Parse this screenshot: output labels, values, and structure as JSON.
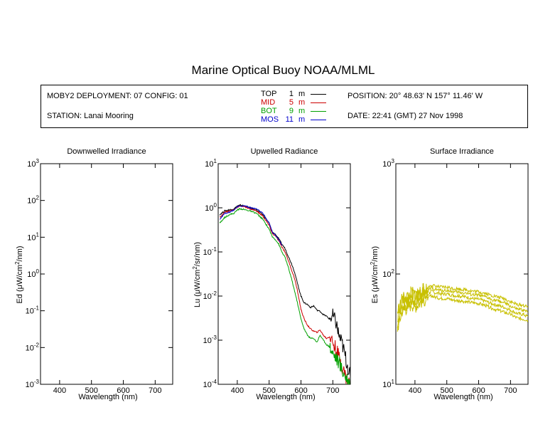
{
  "title": "Marine Optical Buoy NOAA/MLML",
  "info": {
    "deployment": "MOBY2 DEPLOYMENT: 07 CONFIG: 01",
    "station": "STATION: Lanai Mooring",
    "position": "POSITION: 20° 48.63' N   157° 11.46' W",
    "date": "DATE: 22:41 (GMT) 27 Nov 1998"
  },
  "legend": [
    {
      "name": "TOP",
      "depth": "1",
      "unit": "m",
      "color": "#000000"
    },
    {
      "name": "MID",
      "depth": "5",
      "unit": "m",
      "color": "#cc0000"
    },
    {
      "name": "BOT",
      "depth": "9",
      "unit": "m",
      "color": "#00a000"
    },
    {
      "name": "MOS",
      "depth": "11",
      "unit": "m",
      "color": "#0000cc"
    }
  ],
  "chart_data": [
    {
      "type": "line",
      "title": "Downwelled Irradiance",
      "xlabel": "Wavelength (nm)",
      "ylabel": "Ed  (μW/cm²/nm)",
      "xlim": [
        340,
        755
      ],
      "ylim": [
        0.001,
        1000
      ],
      "yscale": "log",
      "xticks": [
        400,
        500,
        600,
        700
      ],
      "yticks": [
        "10-3",
        "10-2",
        "10-1",
        "100",
        "101",
        "102",
        "103"
      ],
      "series": []
    },
    {
      "type": "line",
      "title": "Upwelled Radiance",
      "xlabel": "Wavelength (nm)",
      "ylabel": "Lu  (μW/cm²/sr/nm)",
      "xlim": [
        340,
        755
      ],
      "ylim": [
        0.0001,
        10
      ],
      "yscale": "log",
      "xticks": [
        400,
        500,
        600,
        700
      ],
      "yticks": [
        "10-4",
        "10-3",
        "10-2",
        "10-1",
        "100",
        "101"
      ],
      "series": [
        {
          "name": "TOP",
          "color": "#000000",
          "x": [
            345,
            360,
            375,
            390,
            400,
            410,
            425,
            440,
            460,
            480,
            500,
            510,
            520,
            530,
            540,
            550,
            560,
            570,
            580,
            590,
            600,
            610,
            620,
            630,
            640,
            650,
            660,
            670,
            680,
            690,
            700,
            710,
            720,
            730,
            740,
            755
          ],
          "y": [
            0.7,
            0.85,
            0.9,
            0.95,
            1.1,
            1.15,
            1.1,
            1.0,
            0.9,
            0.7,
            0.45,
            0.28,
            0.25,
            0.2,
            0.15,
            0.12,
            0.08,
            0.055,
            0.035,
            0.018,
            0.01,
            0.007,
            0.0065,
            0.0055,
            0.006,
            0.0048,
            0.0045,
            0.0038,
            0.0035,
            0.003,
            0.0035,
            0.0025,
            0.0012,
            0.0008,
            0.0004,
            0.00015
          ]
        },
        {
          "name": "MID",
          "color": "#cc0000",
          "x": [
            345,
            360,
            375,
            390,
            400,
            410,
            425,
            440,
            460,
            480,
            500,
            510,
            520,
            530,
            540,
            550,
            560,
            570,
            580,
            590,
            600,
            610,
            620,
            630,
            640,
            650,
            660,
            670,
            680,
            690,
            700,
            710,
            720,
            730,
            740,
            755
          ],
          "y": [
            0.6,
            0.8,
            0.85,
            0.9,
            1.05,
            1.1,
            1.05,
            0.95,
            0.85,
            0.65,
            0.4,
            0.26,
            0.23,
            0.18,
            0.13,
            0.1,
            0.065,
            0.04,
            0.025,
            0.012,
            0.005,
            0.003,
            0.0022,
            0.0018,
            0.0016,
            0.0015,
            0.0017,
            0.0013,
            0.0011,
            0.0012,
            0.0009,
            0.0006,
            0.0004,
            0.00025,
            0.00015,
            0.0001
          ]
        },
        {
          "name": "BOT",
          "color": "#00a000",
          "x": [
            345,
            360,
            375,
            390,
            400,
            410,
            425,
            440,
            460,
            480,
            500,
            510,
            520,
            530,
            540,
            550,
            560,
            570,
            580,
            590,
            600,
            610,
            620,
            630,
            640,
            650,
            660,
            670,
            680,
            690,
            700,
            710,
            720,
            730,
            740,
            755
          ],
          "y": [
            0.45,
            0.6,
            0.7,
            0.75,
            0.9,
            0.95,
            0.9,
            0.85,
            0.75,
            0.55,
            0.33,
            0.22,
            0.19,
            0.15,
            0.1,
            0.075,
            0.045,
            0.025,
            0.013,
            0.0065,
            0.003,
            0.0018,
            0.0013,
            0.0011,
            0.0011,
            0.0009,
            0.0013,
            0.001,
            0.0008,
            0.0007,
            0.0005,
            0.0004,
            0.0003,
            0.0002,
            0.00015,
            0.0001
          ]
        },
        {
          "name": "MOS",
          "color": "#0000cc",
          "x": [
            345,
            360,
            375,
            390,
            400,
            410,
            425,
            440,
            460,
            480,
            500,
            510,
            520,
            530,
            540
          ],
          "y": [
            0.55,
            0.75,
            0.8,
            0.9,
            1.05,
            1.1,
            1.1,
            1.0,
            0.95,
            0.75,
            0.45,
            0.28,
            0.24,
            0.19,
            0.14
          ]
        }
      ]
    },
    {
      "type": "line",
      "title": "Surface Irradiance",
      "xlabel": "Wavelength (nm)",
      "ylabel": "Es  (μW/cm²/nm)",
      "xlim": [
        340,
        755
      ],
      "ylim": [
        10,
        1000
      ],
      "yscale": "log",
      "xticks": [
        400,
        500,
        600,
        700
      ],
      "yticks": [
        "101",
        "102",
        "103"
      ],
      "series": [
        {
          "name": "Es",
          "color": "#c8c000",
          "x": [
            345,
            360,
            375,
            390,
            400,
            410,
            425,
            440,
            450,
            460,
            480,
            500,
            520,
            540,
            560,
            580,
            600,
            620,
            640,
            660,
            680,
            700,
            720,
            740,
            755
          ],
          "y": [
            [
              45,
              60,
              62,
              68,
              65,
              68,
              72,
              74,
              80,
              78,
              76,
              76,
              74,
              73,
              72,
              70,
              69,
              67,
              64,
              62,
              60,
              56,
              53,
              52,
              50
            ],
            [
              40,
              55,
              58,
              63,
              60,
              63,
              67,
              69,
              75,
              73,
              71,
              71,
              69,
              68,
              67,
              65,
              64,
              62,
              59,
              57,
              55,
              51,
              48,
              47,
              45
            ],
            [
              36,
              50,
              53,
              58,
              55,
              58,
              62,
              64,
              70,
              68,
              66,
              66,
              64,
              63,
              62,
              60,
              59,
              57,
              54,
              52,
              50,
              47,
              44,
              43,
              41
            ],
            [
              32,
              46,
              49,
              53,
              50,
              53,
              57,
              59,
              64,
              62,
              60,
              60,
              58,
              57,
              56,
              55,
              54,
              52,
              49,
              47,
              45,
              43,
              40,
              39,
              38
            ]
          ]
        }
      ]
    }
  ]
}
